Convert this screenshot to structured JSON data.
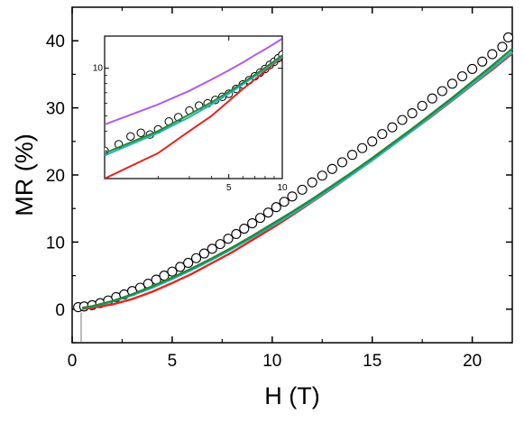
{
  "chart_data": [
    {
      "type": "scatter",
      "role": "main",
      "xlabel": "H (T)",
      "ylabel": "MR (%)",
      "xlim": [
        0,
        22
      ],
      "ylim": [
        -5,
        45
      ],
      "xticks": [
        0,
        5,
        10,
        15,
        20
      ],
      "yticks": [
        0,
        10,
        20,
        30,
        40
      ],
      "xtick_labels": [
        "0",
        "5",
        "10",
        "15",
        "20"
      ],
      "ytick_labels": [
        "0",
        "10",
        "20",
        "30",
        "40"
      ],
      "grid": false,
      "series": [
        {
          "kind": "markers",
          "marker": "open-circle",
          "color": "#000000",
          "x": [
            0.3,
            0.6,
            1.0,
            1.4,
            1.8,
            2.2,
            2.6,
            3.0,
            3.4,
            3.8,
            4.2,
            4.6,
            5.0,
            5.4,
            5.8,
            6.2,
            6.6,
            7.0,
            7.4,
            7.8,
            8.2,
            8.6,
            9.0,
            9.4,
            9.8,
            10.2,
            10.6,
            11.0,
            11.5,
            12.0,
            12.5,
            13.0,
            13.5,
            14.0,
            14.5,
            15.0,
            15.5,
            16.0,
            16.5,
            17.0,
            17.5,
            18.0,
            18.5,
            19.0,
            19.5,
            20.0,
            20.5,
            21.0,
            21.5,
            21.8
          ],
          "y": [
            0.3,
            0.4,
            0.6,
            0.9,
            1.3,
            1.8,
            2.2,
            2.7,
            3.2,
            3.8,
            4.4,
            5.0,
            5.6,
            6.3,
            6.9,
            7.6,
            8.3,
            9.0,
            9.7,
            10.5,
            11.2,
            12.0,
            12.8,
            13.6,
            14.4,
            15.2,
            16.0,
            16.8,
            17.8,
            18.9,
            19.9,
            20.9,
            21.9,
            23.0,
            24.0,
            25.0,
            26.1,
            27.1,
            28.2,
            29.2,
            30.3,
            31.4,
            32.5,
            33.6,
            34.7,
            35.8,
            36.9,
            38.0,
            39.1,
            40.5
          ]
        },
        {
          "kind": "line",
          "color": "#e8231e",
          "x": [
            0.5,
            1,
            2,
            3,
            4,
            5,
            6,
            7,
            8,
            9,
            10,
            11,
            12,
            13,
            14,
            15,
            16,
            17,
            18,
            19,
            20,
            21,
            22
          ],
          "y": [
            0.05,
            0.2,
            0.7,
            1.5,
            2.6,
            3.9,
            5.3,
            6.9,
            8.5,
            10.3,
            12.1,
            14.0,
            16.0,
            18.0,
            20.1,
            22.2,
            24.4,
            26.6,
            28.8,
            31.1,
            33.4,
            35.7,
            38.1
          ]
        },
        {
          "kind": "line",
          "color": "#2ab0b4",
          "x": [
            0.5,
            1,
            2,
            3,
            4,
            5,
            6,
            7,
            8,
            9,
            10,
            11,
            12,
            13,
            14,
            15,
            16,
            17,
            18,
            19,
            20,
            21,
            22
          ],
          "y": [
            0.15,
            0.4,
            1.1,
            2.1,
            3.2,
            4.5,
            5.9,
            7.4,
            9.0,
            10.7,
            12.4,
            14.2,
            16.1,
            18.1,
            20.1,
            22.2,
            24.4,
            26.6,
            28.9,
            31.2,
            33.5,
            35.9,
            38.3
          ]
        },
        {
          "kind": "line",
          "color": "#1f8a3a",
          "x": [
            0.5,
            1,
            2,
            3,
            4,
            5,
            6,
            7,
            8,
            9,
            10,
            11,
            12,
            13,
            14,
            15,
            16,
            17,
            18,
            19,
            20,
            21,
            22
          ],
          "y": [
            0.2,
            0.45,
            1.2,
            2.2,
            3.4,
            4.7,
            6.1,
            7.6,
            9.2,
            10.9,
            12.7,
            14.5,
            16.4,
            18.4,
            20.4,
            22.5,
            24.7,
            26.9,
            29.2,
            31.5,
            33.9,
            36.3,
            38.8
          ]
        }
      ]
    },
    {
      "type": "scatter",
      "role": "inset",
      "xlim": [
        1,
        10
      ],
      "ylim": [
        2,
        16
      ],
      "xscale": "log",
      "yscale": "log",
      "xticks": [
        5,
        10
      ],
      "yticks": [
        10
      ],
      "xtick_labels": [
        "5",
        "10"
      ],
      "ytick_labels": [
        "10"
      ],
      "grid": false,
      "series": [
        {
          "kind": "markers",
          "marker": "open-circle",
          "color": "#000000",
          "x": [
            1.0,
            1.2,
            1.4,
            1.6,
            1.8,
            2.0,
            2.3,
            2.6,
            3.0,
            3.4,
            3.8,
            4.2,
            4.6,
            5.0,
            5.5,
            6.0,
            6.5,
            7.0,
            7.5,
            8.0,
            8.5,
            9.0,
            9.5,
            10.0
          ],
          "y": [
            3.0,
            3.3,
            3.7,
            3.9,
            3.8,
            4.1,
            4.6,
            4.9,
            5.4,
            5.8,
            6.0,
            6.3,
            6.6,
            6.9,
            7.4,
            7.9,
            8.4,
            8.9,
            9.4,
            9.9,
            10.5,
            11.0,
            11.6,
            12.2
          ]
        },
        {
          "kind": "line",
          "color": "#e8231e",
          "x": [
            1,
            2,
            3,
            4,
            5,
            6,
            7,
            8,
            9,
            10
          ],
          "y": [
            2.0,
            2.9,
            4.0,
            5.0,
            6.2,
            7.4,
            8.5,
            9.6,
            10.7,
            11.7
          ]
        },
        {
          "kind": "line",
          "color": "#2ab0b4",
          "x": [
            1,
            2,
            3,
            4,
            5,
            6,
            7,
            8,
            9,
            10
          ],
          "y": [
            2.8,
            3.9,
            4.9,
            5.9,
            6.9,
            7.9,
            8.9,
            9.9,
            10.9,
            11.9
          ]
        },
        {
          "kind": "line",
          "color": "#1f8a3a",
          "x": [
            1,
            2,
            3,
            4,
            5,
            6,
            7,
            8,
            9,
            10
          ],
          "y": [
            2.9,
            4.0,
            5.1,
            6.1,
            7.1,
            8.1,
            9.1,
            10.1,
            11.1,
            12.1
          ]
        },
        {
          "kind": "line",
          "color": "#b05ce8",
          "x": [
            1,
            2,
            3,
            4,
            5,
            6,
            7,
            8,
            9,
            10
          ],
          "y": [
            4.4,
            5.9,
            7.2,
            8.5,
            9.7,
            10.9,
            12.1,
            13.2,
            14.3,
            15.4
          ]
        }
      ]
    }
  ]
}
